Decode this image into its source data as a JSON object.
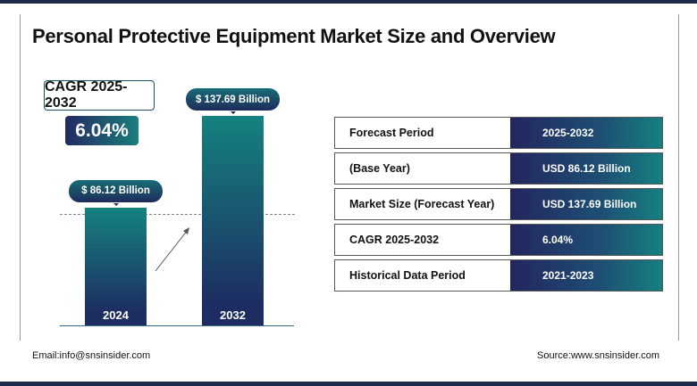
{
  "title": "Personal Protective Equipment Market Size and Overview",
  "cagr": {
    "label": "CAGR 2025-2032",
    "value": "6.04%"
  },
  "chart_data": {
    "type": "bar",
    "categories": [
      "2024",
      "2032"
    ],
    "values": [
      86.12,
      137.69
    ],
    "data_labels": [
      "$ 86.12 Billion",
      "$ 137.69 Billion"
    ],
    "unit": "USD Billion",
    "colors": [
      "#158280",
      "#1d2d61"
    ]
  },
  "table": [
    {
      "label": "Forecast Period",
      "value": "2025-2032"
    },
    {
      "label": "(Base Year)",
      "value": "USD  86.12 Billion"
    },
    {
      "label": "Market Size (Forecast Year)",
      "value": "USD  137.69 Billion"
    },
    {
      "label": "CAGR 2025-2032",
      "value": "6.04%"
    },
    {
      "label": "Historical Data Period",
      "value": "2021-2023"
    }
  ],
  "footer": {
    "email": "Email:info@snsinsider.com",
    "source": "Source:www.snsinsider.com"
  }
}
